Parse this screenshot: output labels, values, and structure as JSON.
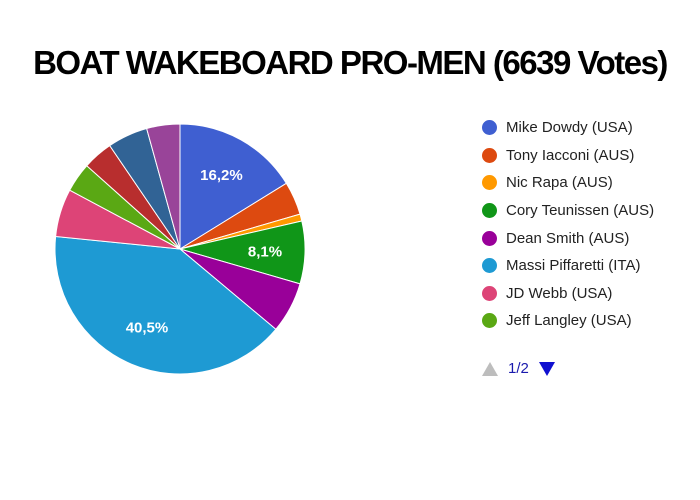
{
  "chart_data": {
    "type": "pie",
    "title": "BOAT WAKEBOARD PRO-MEN (6639 Votes)",
    "slices": [
      {
        "name": "Mike Dowdy (USA)",
        "value": 16.2,
        "label": "16,2%",
        "color": "#3f5fd1"
      },
      {
        "name": "Tony Iacconi (AUS)",
        "value": 4.3,
        "label": "",
        "color": "#dd4a10"
      },
      {
        "name": "Nic Rapa (AUS)",
        "value": 0.9,
        "label": "",
        "color": "#ff9900"
      },
      {
        "name": "Cory Teunissen (AUS)",
        "value": 8.1,
        "label": "8,1%",
        "color": "#109618"
      },
      {
        "name": "Dean Smith (AUS)",
        "value": 6.6,
        "label": "",
        "color": "#990099"
      },
      {
        "name": "Massi Piffaretti (ITA)",
        "value": 40.5,
        "label": "40,5%",
        "color": "#1e9ad3"
      },
      {
        "name": "JD Webb (USA)",
        "value": 6.2,
        "label": "",
        "color": "#dd4477"
      },
      {
        "name": "Jeff Langley (USA)",
        "value": 3.8,
        "label": "",
        "color": "#5aa814"
      },
      {
        "name": "",
        "value": 3.9,
        "label": "",
        "color": "#b82e2e"
      },
      {
        "name": "",
        "value": 5.2,
        "label": "",
        "color": "#316395"
      },
      {
        "name": "",
        "value": 4.3,
        "label": "",
        "color": "#994499"
      }
    ],
    "legend_position": "right",
    "start_angle_deg": 90,
    "direction": "clockwise"
  },
  "legend_visible_count": 8,
  "pager": {
    "label": "1/2",
    "up_color": "#bdbdbd",
    "down_color": "#1010d0"
  }
}
